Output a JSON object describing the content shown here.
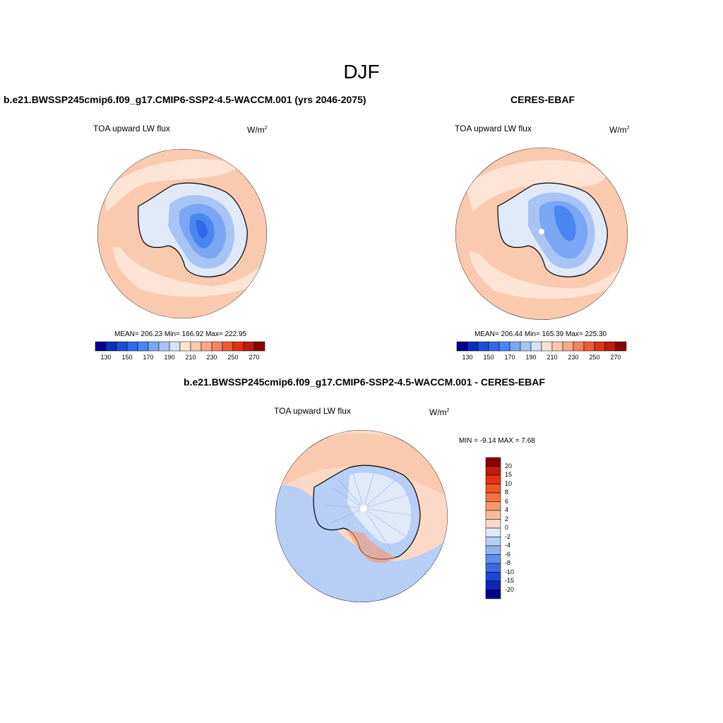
{
  "title": "DJF",
  "panels": {
    "model": {
      "title": "b.e21.BWSSP245cmip6.f09_g17.CMIP6-SSP2-4.5-WACCM.001 (yrs 2046-2075)",
      "variable": "TOA upward LW flux",
      "units": "W/m",
      "units_exponent": "2",
      "stats": "MEAN= 206.23  Min= 166.92  Max= 222.95"
    },
    "obs": {
      "title": "CERES-EBAF",
      "variable": "TOA upward LW flux",
      "units": "W/m",
      "units_exponent": "2",
      "stats": "MEAN= 206.44  Min= 165.39  Max= 225.30"
    },
    "diff": {
      "title": "b.e21.BWSSP245cmip6.f09_g17.CMIP6-SSP2-4.5-WACCM.001 - CERES-EBAF",
      "variable": "TOA upward LW flux",
      "units": "W/m",
      "units_exponent": "2",
      "stats": "MIN =  -9.14 MAX =   7.68"
    }
  },
  "colorbar_abs": {
    "colors": [
      "#00008b",
      "#0a2fb8",
      "#1d4fd6",
      "#2f6ae8",
      "#4a86f0",
      "#7aa6f3",
      "#a8c4f5",
      "#d3e1f8",
      "#fde3d3",
      "#fcc8ae",
      "#f8aa88",
      "#f4845f",
      "#ee5a34",
      "#dd3214",
      "#bb1d0c",
      "#8c0000"
    ],
    "tick_labels": [
      "130",
      "150",
      "170",
      "190",
      "210",
      "230",
      "250",
      "270"
    ]
  },
  "colorbar_diff": {
    "colors": [
      "#8b0000",
      "#c41a08",
      "#e5320f",
      "#f25424",
      "#f27245",
      "#f6976c",
      "#f9bb9a",
      "#fbd9c6",
      "#dfe9f8",
      "#b7cef5",
      "#8eb2f1",
      "#5f8eec",
      "#3b6ae5",
      "#1e46d6",
      "#0c27b7",
      "#00008b"
    ],
    "tick_labels": [
      "20",
      "15",
      "10",
      "8",
      "6",
      "4",
      "2",
      "0",
      "-2",
      "-4",
      "-6",
      "-8",
      "-10",
      "-15",
      "-20"
    ]
  },
  "map_colors": {
    "ocean_light": "#f9c9b0",
    "ocean_pale": "#fde4d4",
    "land_pale": "#dfe9f8",
    "land_mid": "#a8c4f5",
    "land_blue": "#7aa6f3",
    "land_deep": "#4a86f0",
    "land_core": "#2f6ae8",
    "diff_blue": "#b7cef5",
    "diff_blue2": "#8eb2f1",
    "diff_pink": "#f9c9b0",
    "diff_pink2": "#fbd9c6",
    "coast": "#000000"
  }
}
